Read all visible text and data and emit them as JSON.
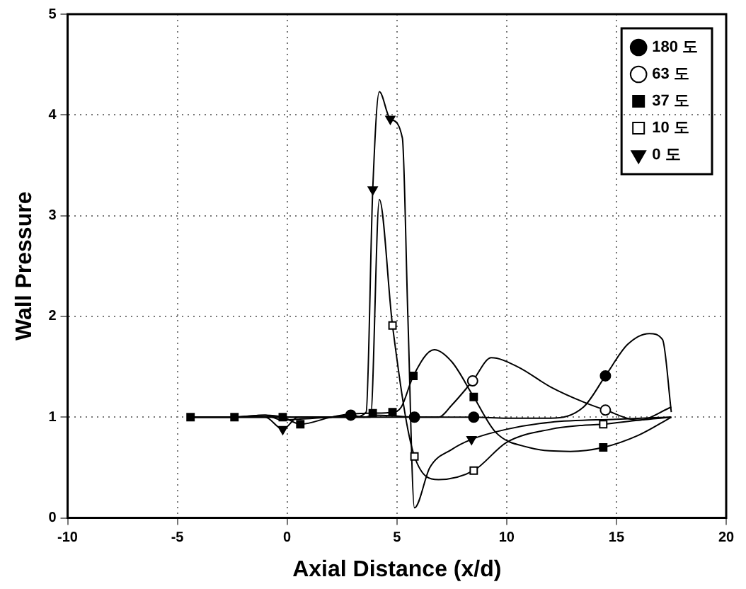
{
  "chart_data": {
    "type": "line",
    "xlabel": "Axial Distance (x/d)",
    "ylabel": "Wall Pressure",
    "xlim": [
      -10,
      20
    ],
    "xticks": [
      -10,
      -5,
      0,
      5,
      10,
      15,
      20
    ],
    "ylim": [
      0,
      5
    ],
    "yticks": [
      0,
      1,
      2,
      3,
      4,
      5
    ],
    "grid": true,
    "legend": "top right",
    "series": [
      {
        "type": "line",
        "color": "#000000",
        "marker": "none",
        "x": [
          -4.5,
          -2.5,
          -1,
          -0.2,
          0.5,
          2,
          2.9,
          3.5,
          4,
          5,
          5.8,
          7,
          8.5,
          10,
          12,
          13.5,
          14.5,
          15.5,
          16.5,
          17.1,
          17.5
        ],
        "values": [
          1,
          1,
          1.02,
          0.97,
          0.98,
          1.0,
          1.02,
          1.0,
          1.02,
          1.01,
          1.0,
          1.0,
          1.0,
          0.99,
          0.99,
          1.1,
          1.41,
          1.72,
          1.83,
          1.77,
          1.05
        ]
      },
      {
        "type": "scatter",
        "name": "180 도",
        "color": "#000000",
        "marker": "circle",
        "x": [
          2.9,
          5.8,
          8.5,
          14.5
        ],
        "values": [
          1.02,
          1.0,
          1.0,
          1.41
        ]
      },
      {
        "type": "line",
        "color": "#000000",
        "marker": "none",
        "x": [
          -4.5,
          0,
          3,
          5,
          6,
          6.9,
          7.5,
          8.45,
          9.3,
          10.5,
          12,
          13.5,
          14.5,
          16,
          17.5
        ],
        "values": [
          1,
          1,
          1,
          1,
          1,
          1.0,
          1.12,
          1.36,
          1.59,
          1.5,
          1.3,
          1.15,
          1.07,
          0.97,
          1.1
        ]
      },
      {
        "type": "scatter",
        "name": "63 도",
        "color": "#000000",
        "marker": "circle",
        "colors": [
          "#ffffff",
          "#ffffff"
        ],
        "x": [
          8.45,
          14.5
        ],
        "values": [
          1.36,
          1.07
        ]
      },
      {
        "type": "line",
        "color": "#000000",
        "marker": "none",
        "x": [
          -4.4,
          -2.4,
          -1,
          -0.2,
          0.6,
          2,
          2.8,
          3.9,
          4.8,
          5.2,
          5.75,
          6.7,
          7.5,
          8.5,
          9.5,
          11,
          12.9,
          14.4,
          16,
          17.5
        ],
        "values": [
          1,
          1,
          1.02,
          1.0,
          0.93,
          1.0,
          1.03,
          1.04,
          1.05,
          1.1,
          1.41,
          1.67,
          1.55,
          1.2,
          0.85,
          0.7,
          0.66,
          0.7,
          0.82,
          1.0
        ]
      },
      {
        "type": "scatter",
        "name": "37 도",
        "color": "#000000",
        "marker": "square",
        "x": [
          -4.4,
          -2.4,
          -0.2,
          0.6,
          2.8,
          3.9,
          4.8,
          5.75,
          8.5,
          14.4
        ],
        "values": [
          1,
          1,
          1.0,
          0.93,
          null,
          1.04,
          1.05,
          1.41,
          1.2,
          0.7
        ]
      },
      {
        "type": "line",
        "color": "#000000",
        "marker": "none",
        "x": [
          -4.5,
          0,
          3,
          3.8,
          4.2,
          4.8,
          5.8,
          6.9,
          8.5,
          10,
          12,
          13.5,
          14.4,
          16,
          17.5
        ],
        "values": [
          1,
          1,
          1,
          1.0,
          3.16,
          1.91,
          0.61,
          0.38,
          0.47,
          0.75,
          0.88,
          0.92,
          0.93,
          0.97,
          1.0
        ]
      },
      {
        "type": "scatter",
        "name": "10 도",
        "color": "#000000",
        "marker": "square",
        "colors": [
          "#ffffff",
          "#ffffff",
          "#ffffff",
          "#ffffff"
        ],
        "x": [
          4.8,
          5.8,
          8.5,
          14.4
        ],
        "values": [
          1.91,
          0.61,
          0.47,
          0.93
        ]
      },
      {
        "type": "line",
        "color": "#000000",
        "marker": "none",
        "x": [
          -4.5,
          -1,
          -0.2,
          0.5,
          3,
          3.6,
          3.9,
          4.2,
          4.7,
          5.25,
          5.5,
          5.8,
          6.5,
          7.5,
          8.4,
          10,
          12,
          15,
          17.5
        ],
        "values": [
          1,
          1,
          0.88,
          1.0,
          1.0,
          1.05,
          3.26,
          4.23,
          3.96,
          3.77,
          2,
          0.1,
          0.5,
          0.68,
          0.78,
          0.88,
          0.95,
          0.98,
          1.0
        ]
      },
      {
        "type": "scatter",
        "name": "0 도",
        "color": "#000000",
        "marker": "triangle",
        "x": [
          -0.2,
          3.9,
          4.7,
          8.4
        ],
        "values": [
          0.88,
          3.26,
          3.96,
          0.78
        ]
      }
    ]
  }
}
